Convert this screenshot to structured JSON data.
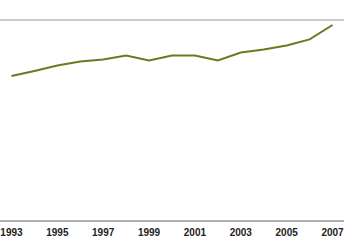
{
  "chart_data": {
    "type": "line",
    "x": [
      1993,
      1994,
      1995,
      1996,
      1997,
      1998,
      1999,
      2000,
      2001,
      2002,
      2003,
      2004,
      2005,
      2006,
      2007
    ],
    "values": [
      4.33,
      4.48,
      4.64,
      4.76,
      4.82,
      4.94,
      4.79,
      4.94,
      4.94,
      4.79,
      5.03,
      5.12,
      5.24,
      5.42,
      5.85
    ],
    "color": "#6b7a1e",
    "xlim": [
      1992.5,
      2007.5
    ],
    "xticks": [
      1993,
      1995,
      1997,
      1999,
      2001,
      2003,
      2005,
      2007
    ],
    "ylim": [
      0,
      6
    ],
    "yticks": [
      0,
      1,
      2,
      3,
      4,
      5,
      6
    ],
    "grid": true,
    "tick_labels": "x"
  }
}
